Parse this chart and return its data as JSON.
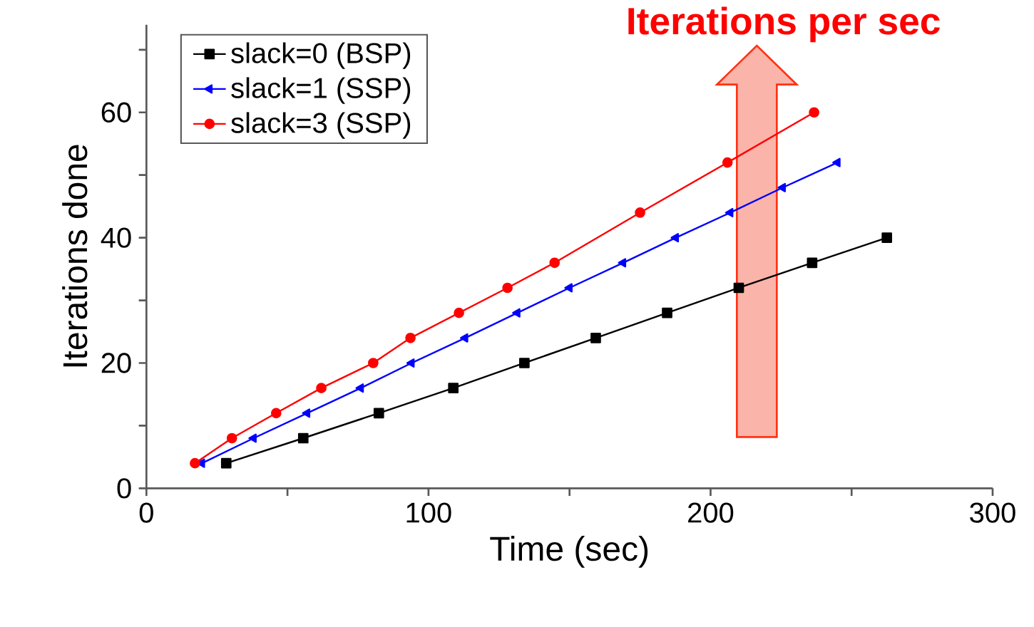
{
  "chart_data": {
    "type": "line",
    "title": "Iterations per sec",
    "xlabel": "Time (sec)",
    "ylabel": "Iterations done",
    "xlim": [
      0,
      300
    ],
    "ylim": [
      0,
      74
    ],
    "xticks": [
      0,
      {
        "value": 50,
        "label": null
      },
      100,
      {
        "value": 150,
        "label": null
      },
      200,
      {
        "value": 250,
        "label": null
      },
      300
    ],
    "yticks": [
      0,
      {
        "value": 10,
        "label": null
      },
      20,
      {
        "value": 30,
        "label": null
      },
      40,
      {
        "value": 50,
        "label": null
      },
      60,
      {
        "value": 70,
        "label": null
      }
    ],
    "legend": "top left",
    "grid": false,
    "line_style": "solid",
    "series": [
      {
        "name": "slack=0 (BSP)",
        "color": "#000000",
        "marker": "square",
        "x": [
          28.3,
          55.6,
          82.4,
          108.8,
          134,
          159.3,
          184.6,
          210,
          236,
          262.5
        ],
        "values": [
          4,
          8,
          12,
          16,
          20,
          24,
          28,
          32,
          36,
          40
        ]
      },
      {
        "name": "slack=1 (SSP)",
        "color": "#0000ff",
        "marker": "triangle",
        "x": [
          19.7,
          38,
          57,
          76,
          94,
          113,
          131.5,
          150,
          169,
          187.7,
          207,
          225.6,
          245
        ],
        "values": [
          4,
          8,
          12,
          16,
          20,
          24,
          28,
          32,
          36,
          40,
          44,
          48,
          52
        ]
      },
      {
        "name": "slack=3 (SSP)",
        "color": "#ff0000",
        "marker": "circle",
        "x": [
          17.2,
          30.3,
          46,
          62,
          80.4,
          93.6,
          110.8,
          128,
          144.7,
          175,
          206,
          236.7
        ],
        "values": [
          4,
          8,
          12,
          16,
          20,
          24,
          28,
          32,
          36,
          44,
          52,
          60
        ]
      }
    ]
  }
}
